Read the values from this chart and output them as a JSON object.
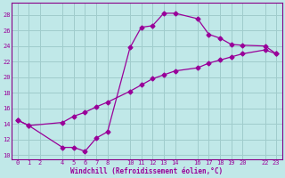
{
  "xlabel": "Windchill (Refroidissement éolien,°C)",
  "bg_color": "#c0e8e8",
  "grid_color": "#a0cccc",
  "line_color": "#990099",
  "spine_color": "#880088",
  "x_ticks": [
    0,
    1,
    2,
    4,
    5,
    6,
    7,
    8,
    10,
    11,
    12,
    13,
    14,
    16,
    17,
    18,
    19,
    20,
    22,
    23
  ],
  "ylim": [
    9.5,
    29.5
  ],
  "xlim": [
    -0.5,
    23.5
  ],
  "yticks": [
    10,
    12,
    14,
    16,
    18,
    20,
    22,
    24,
    26,
    28
  ],
  "curve1_x": [
    0,
    1,
    4,
    5,
    6,
    7,
    8,
    10,
    11,
    12,
    13,
    14,
    16,
    17,
    18,
    19,
    20,
    22,
    23
  ],
  "curve1_y": [
    14.5,
    13.8,
    11.0,
    11.0,
    10.5,
    12.2,
    13.0,
    23.8,
    26.4,
    26.6,
    28.2,
    28.2,
    27.5,
    25.5,
    25.0,
    24.2,
    24.1,
    24.0,
    23.0
  ],
  "curve2_x": [
    0,
    1,
    4,
    5,
    6,
    7,
    8,
    10,
    11,
    12,
    13,
    14,
    16,
    17,
    18,
    19,
    20,
    22,
    23
  ],
  "curve2_y": [
    14.5,
    13.8,
    14.2,
    15.0,
    15.5,
    16.2,
    16.8,
    18.2,
    19.0,
    19.8,
    20.3,
    20.8,
    21.2,
    21.8,
    22.2,
    22.6,
    23.0,
    23.5,
    23.0
  ]
}
